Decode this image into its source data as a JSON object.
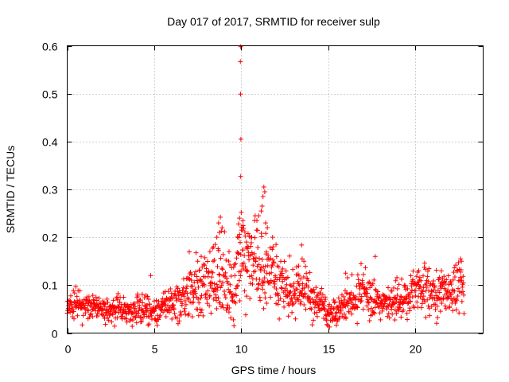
{
  "chart_data": {
    "type": "scatter",
    "title": "Day 017 of 2017, SRMTID for receiver sulp",
    "xlabel": "GPS time / hours",
    "ylabel": "SRMTID / TECUs",
    "xlim": [
      0,
      23.9
    ],
    "ylim": [
      0,
      0.6
    ],
    "x_ticks": [
      "0",
      "5",
      "10",
      "15",
      "20"
    ],
    "x_tick_values": [
      0,
      5,
      10,
      15,
      20
    ],
    "y_ticks": [
      "0",
      "0.1",
      "0.2",
      "0.3",
      "0.4",
      "0.5",
      "0.6"
    ],
    "y_tick_values": [
      0,
      0.1,
      0.2,
      0.3,
      0.4,
      0.5,
      0.6
    ],
    "grid": true,
    "marker": "plus",
    "color": "#ff0000",
    "series": [
      {
        "name": "SRMTID",
        "profile_x": [
          0.0,
          0.5,
          1.0,
          1.5,
          2.0,
          2.5,
          3.0,
          3.5,
          4.0,
          4.5,
          5.0,
          5.5,
          6.0,
          6.5,
          7.0,
          7.5,
          8.0,
          8.5,
          9.0,
          9.5,
          10.0,
          10.5,
          11.0,
          11.5,
          12.0,
          12.5,
          13.0,
          13.5,
          14.0,
          14.5,
          15.0,
          15.5,
          16.0,
          16.5,
          17.0,
          17.5,
          18.0,
          18.5,
          19.0,
          19.5,
          20.0,
          20.5,
          21.0,
          21.5,
          22.0,
          22.5,
          22.8
        ],
        "profile_mean": [
          0.06,
          0.065,
          0.058,
          0.06,
          0.05,
          0.048,
          0.055,
          0.045,
          0.05,
          0.055,
          0.045,
          0.055,
          0.065,
          0.07,
          0.085,
          0.095,
          0.1,
          0.11,
          0.12,
          0.1,
          0.16,
          0.15,
          0.14,
          0.13,
          0.11,
          0.09,
          0.085,
          0.095,
          0.07,
          0.06,
          0.045,
          0.04,
          0.06,
          0.08,
          0.09,
          0.075,
          0.055,
          0.06,
          0.065,
          0.075,
          0.085,
          0.09,
          0.08,
          0.085,
          0.09,
          0.095,
          0.095
        ],
        "profile_spread": [
          0.018,
          0.02,
          0.02,
          0.018,
          0.016,
          0.018,
          0.02,
          0.018,
          0.02,
          0.02,
          0.018,
          0.022,
          0.025,
          0.03,
          0.035,
          0.04,
          0.045,
          0.05,
          0.055,
          0.045,
          0.06,
          0.055,
          0.05,
          0.045,
          0.04,
          0.035,
          0.035,
          0.04,
          0.03,
          0.025,
          0.018,
          0.016,
          0.025,
          0.03,
          0.035,
          0.03,
          0.022,
          0.025,
          0.025,
          0.028,
          0.03,
          0.03,
          0.03,
          0.03,
          0.03,
          0.035,
          0.03
        ],
        "n_points": 1350,
        "spike_points": [
          [
            9.97,
            0.598
          ],
          [
            9.95,
            0.567
          ],
          [
            9.96,
            0.499
          ],
          [
            9.98,
            0.405
          ],
          [
            9.97,
            0.327
          ],
          [
            10.0,
            0.252
          ],
          [
            9.9,
            0.24
          ],
          [
            9.85,
            0.228
          ],
          [
            10.1,
            0.235
          ],
          [
            10.05,
            0.215
          ],
          [
            11.3,
            0.305
          ],
          [
            11.35,
            0.295
          ],
          [
            11.25,
            0.285
          ],
          [
            11.2,
            0.265
          ],
          [
            11.15,
            0.255
          ],
          [
            11.0,
            0.245
          ],
          [
            10.8,
            0.245
          ],
          [
            10.9,
            0.235
          ],
          [
            11.4,
            0.23
          ],
          [
            11.5,
            0.22
          ],
          [
            8.8,
            0.242
          ],
          [
            8.7,
            0.23
          ],
          [
            8.9,
            0.22
          ],
          [
            8.75,
            0.21
          ],
          [
            8.6,
            0.2
          ],
          [
            10.6,
            0.2
          ],
          [
            11.8,
            0.2
          ],
          [
            12.0,
            0.185
          ],
          [
            10.3,
            0.19
          ],
          [
            10.4,
            0.18
          ],
          [
            13.5,
            0.155
          ],
          [
            13.6,
            0.15
          ],
          [
            13.3,
            0.14
          ],
          [
            17.7,
            0.16
          ],
          [
            22.6,
            0.155
          ],
          [
            22.65,
            0.15
          ],
          [
            20.2,
            0.13
          ],
          [
            21.5,
            0.13
          ],
          [
            16.0,
            0.125
          ],
          [
            4.8,
            0.12
          ],
          [
            7.5,
            0.15
          ],
          [
            7.7,
            0.16
          ],
          [
            8.2,
            0.17
          ],
          [
            8.4,
            0.18
          ],
          [
            9.3,
            0.17
          ]
        ]
      }
    ]
  }
}
